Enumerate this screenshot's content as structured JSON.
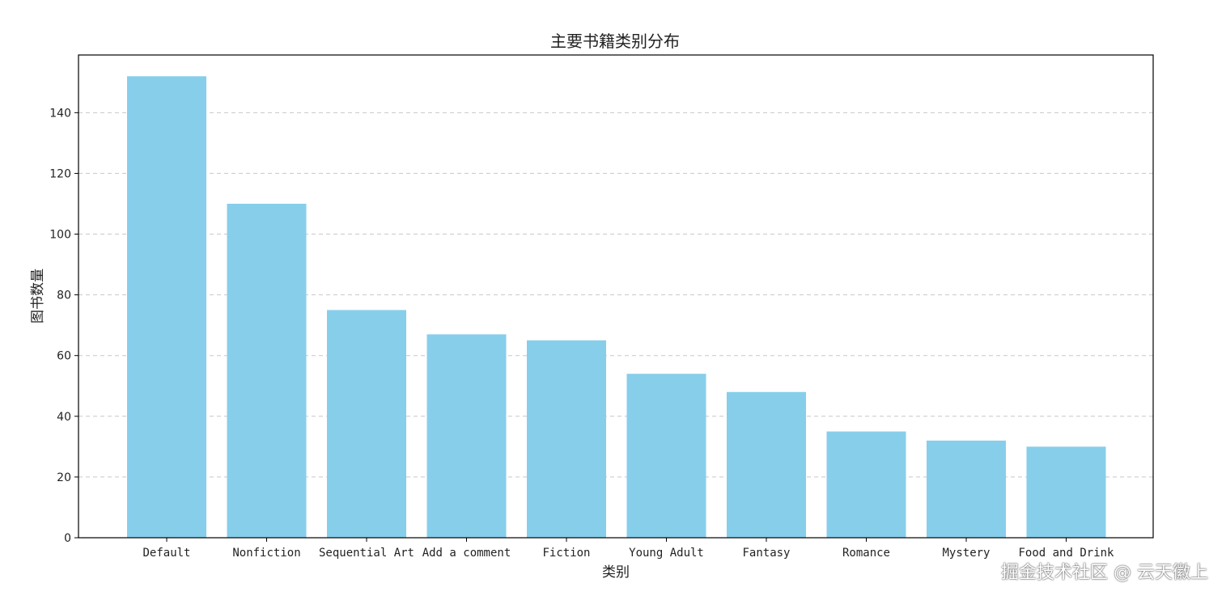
{
  "chart_data": {
    "type": "bar",
    "title": "主要书籍类别分布",
    "xlabel": "类别",
    "ylabel": "图书数量",
    "categories": [
      "Default",
      "Nonfiction",
      "Sequential Art",
      "Add a comment",
      "Fiction",
      "Young Adult",
      "Fantasy",
      "Romance",
      "Mystery",
      "Food and Drink"
    ],
    "values": [
      152,
      110,
      75,
      67,
      65,
      54,
      48,
      35,
      32,
      30
    ],
    "ylim": [
      0,
      159
    ],
    "yticks": [
      0,
      20,
      40,
      60,
      80,
      100,
      120,
      140
    ],
    "grid": "y-dashed",
    "bar_color": "#87CEEB",
    "legend": "none"
  },
  "watermark": "掘金技术社区 @ 云天徽上"
}
